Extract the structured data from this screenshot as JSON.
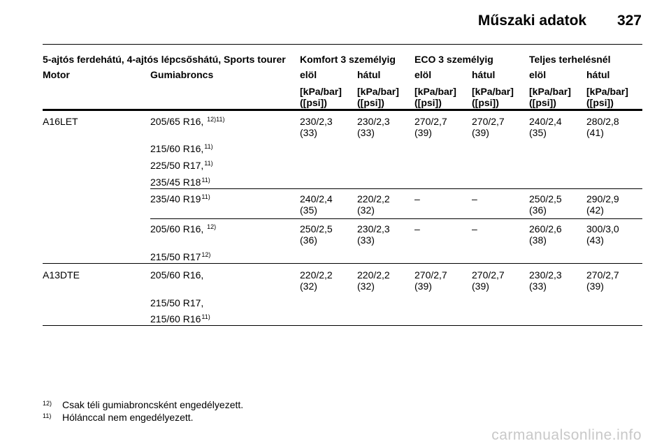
{
  "header": {
    "title": "Műszaki adatok",
    "page_number": "327"
  },
  "table": {
    "group_headers": {
      "vehicles": "5-ajtós ferdehátú, 4-ajtós lépcsőshátú, Sports tourer",
      "komfort": "Komfort 3 személyig",
      "eco": "ECO 3 személyig",
      "full": "Teljes terhelésnél"
    },
    "col_headers": {
      "motor": "Motor",
      "tire": "Gumiabroncs",
      "front": "elöl",
      "rear": "hátul",
      "unit1": "[kPa/bar]",
      "unit2": "([psi])"
    },
    "sections": [
      {
        "motor": "A16LET",
        "rows": [
          {
            "tire": "205/65 R16, ",
            "sup": "12)11)",
            "values": [
              "230/2,3",
              "230/2,3",
              "270/2,7",
              "270/2,7",
              "240/2,4",
              "280/2,8"
            ],
            "psi": [
              "(33)",
              "(33)",
              "(39)",
              "(39)",
              "(35)",
              "(41)"
            ]
          },
          {
            "tire": "215/60 R16,",
            "sup": "11)"
          },
          {
            "tire": "225/50 R17,",
            "sup": "11)"
          },
          {
            "tire": "235/45 R18",
            "sup": "11)"
          },
          {
            "tire": "235/40 R19",
            "sup": "11)",
            "values": [
              "240/2,4",
              "220/2,2",
              "–",
              "–",
              "250/2,5",
              "290/2,9"
            ],
            "psi": [
              "(35)",
              "(32)",
              "",
              "",
              "(36)",
              "(42)"
            ]
          },
          {
            "tire": "205/60 R16, ",
            "sup": "12)",
            "values": [
              "250/2,5",
              "230/2,3",
              "–",
              "–",
              "260/2,6",
              "300/3,0"
            ],
            "psi": [
              "(36)",
              "(33)",
              "",
              "",
              "(38)",
              "(43)"
            ]
          },
          {
            "tire": "215/50 R17",
            "sup": "12)"
          }
        ]
      },
      {
        "motor": "A13DTE",
        "rows": [
          {
            "tire": "205/60 R16,",
            "sup": "",
            "values": [
              "220/2,2",
              "220/2,2",
              "270/2,7",
              "270/2,7",
              "230/2,3",
              "270/2,7"
            ],
            "psi": [
              "(32)",
              "(32)",
              "(39)",
              "(39)",
              "(33)",
              "(39)"
            ]
          },
          {
            "tire": "215/50 R17,",
            "sup": ""
          },
          {
            "tire": "215/60 R16",
            "sup": "11)"
          }
        ]
      }
    ]
  },
  "footnotes": [
    {
      "mark": "12)",
      "text": "Csak téli gumiabroncsként engedélyezett."
    },
    {
      "mark": "11)",
      "text": "Hólánccal nem engedélyezett."
    }
  ],
  "watermark": "carmanualsonline.info"
}
